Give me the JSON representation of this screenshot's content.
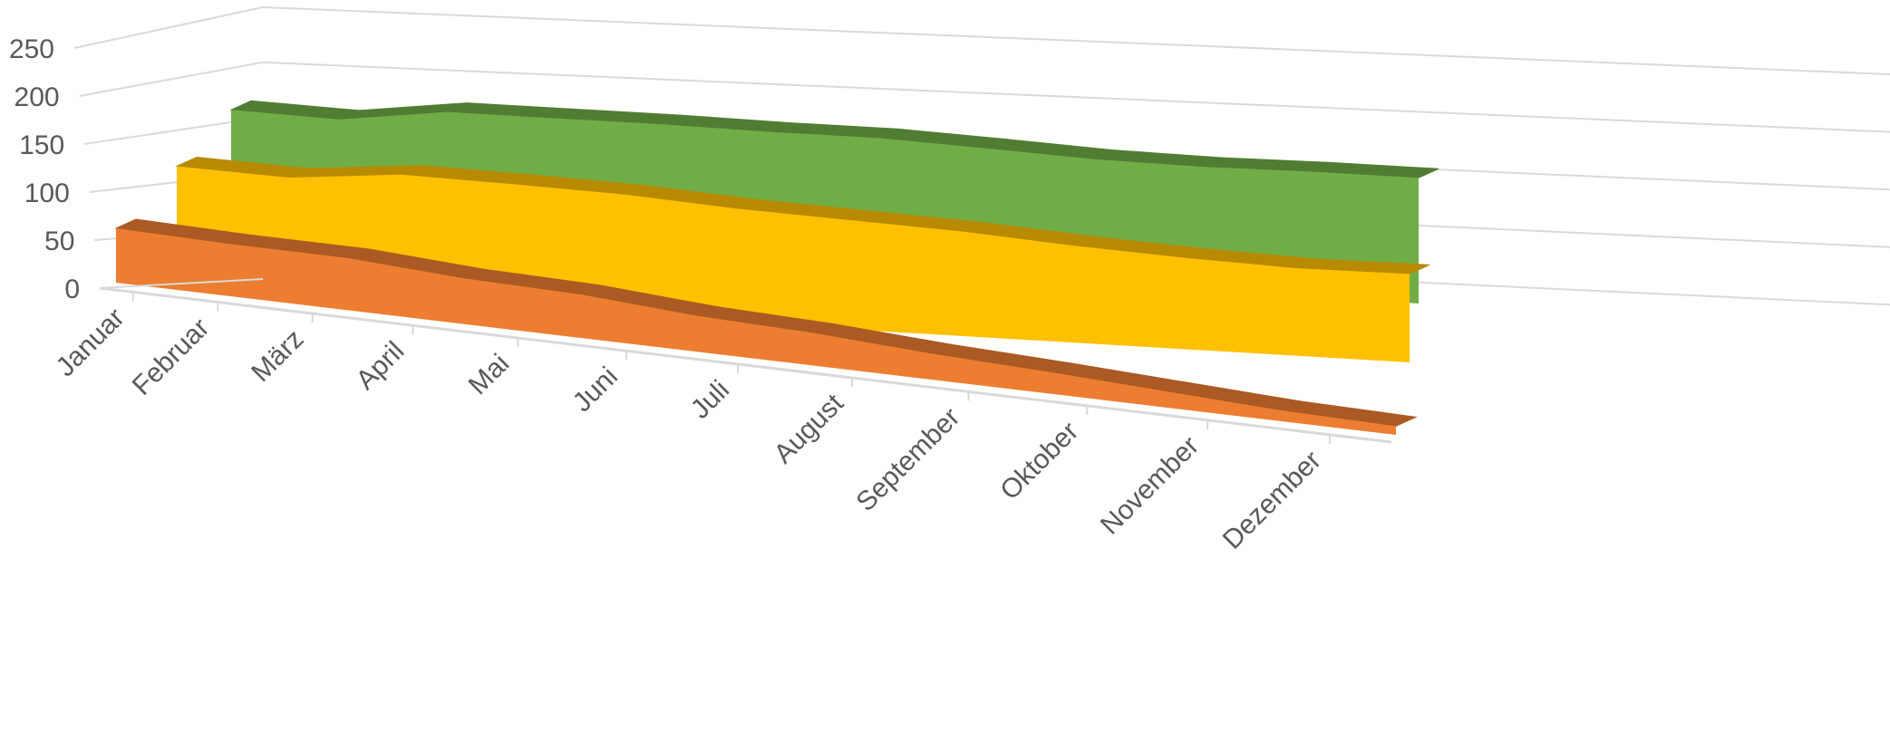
{
  "chart_data": {
    "type": "area",
    "style": "3d",
    "categories": [
      "Januar",
      "Februar",
      "März",
      "April",
      "Mai",
      "Juni",
      "Juli",
      "August",
      "September",
      "Oktober",
      "November",
      "Dezember"
    ],
    "series": [
      {
        "values": [
          185,
          180,
          200,
          200,
          200,
          198,
          198,
          192,
          185,
          183,
          185,
          185
        ],
        "color": "#70AD47"
      },
      {
        "values": [
          130,
          125,
          135,
          132,
          128,
          120,
          115,
          110,
          102,
          96,
          92,
          93
        ],
        "color": "#FFC000"
      },
      {
        "values": [
          50,
          48,
          48,
          42,
          40,
          33,
          30,
          24,
          20,
          15,
          10,
          8
        ],
        "color": "#ED7D31"
      }
    ],
    "yticks": [
      0,
      50,
      100,
      150,
      200,
      250
    ],
    "ylim": [
      0,
      250
    ],
    "grid": true,
    "legend": "none",
    "title": "",
    "xlabel": "",
    "ylabel": ""
  }
}
